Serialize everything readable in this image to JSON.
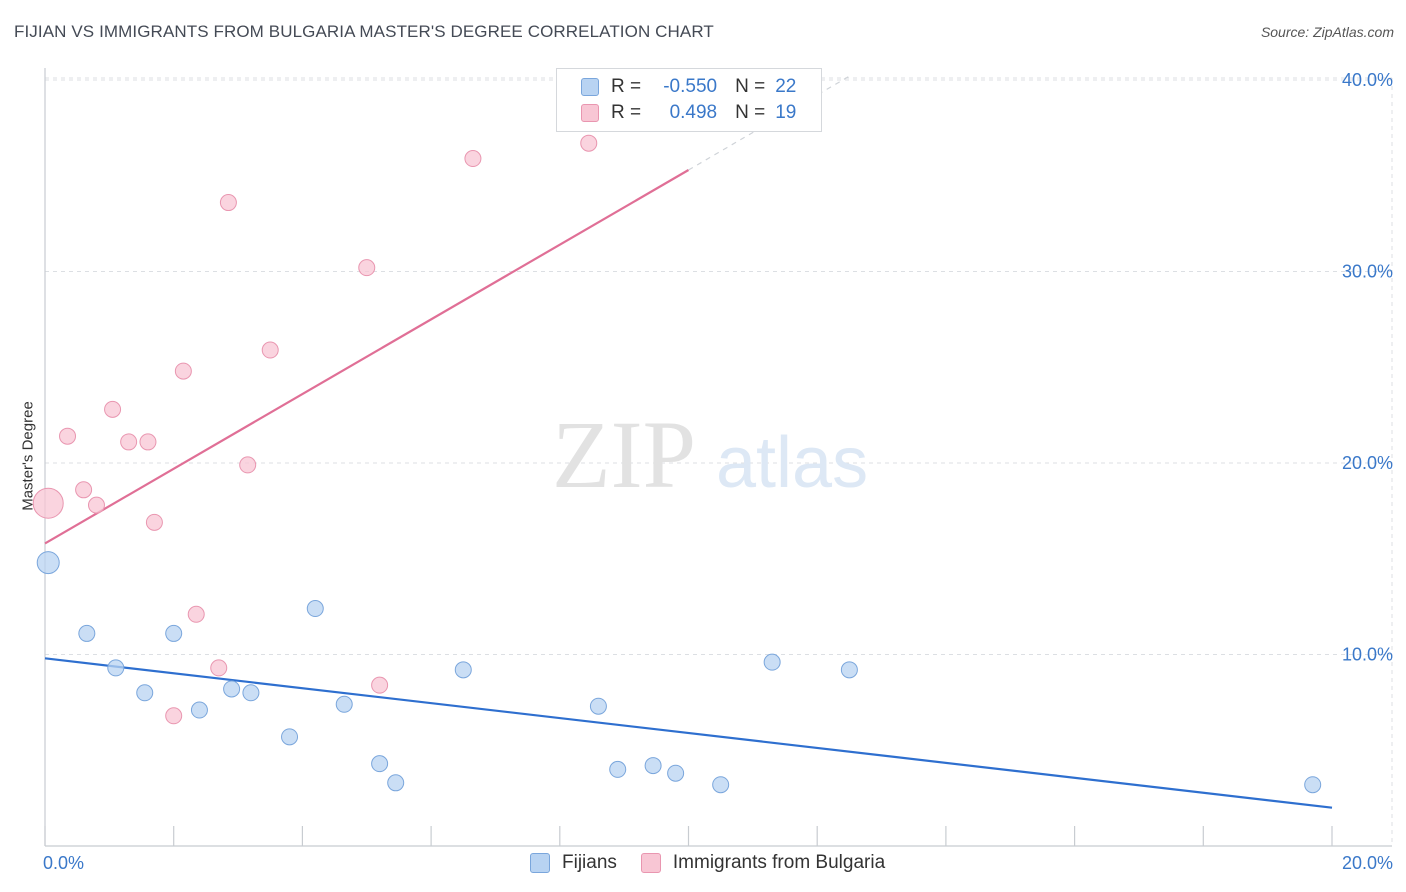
{
  "header": {
    "title": "FIJIAN VS IMMIGRANTS FROM BULGARIA MASTER'S DEGREE CORRELATION CHART",
    "source": "Source: ZipAtlas.com"
  },
  "watermark": {
    "zip": "ZIP",
    "atlas": "atlas"
  },
  "legend": {
    "rows": [
      {
        "r_label": "R =",
        "r_value": "-0.550",
        "n_label": "N =",
        "n_value": "22"
      },
      {
        "r_label": "R =",
        "r_value": "0.498",
        "n_label": "N =",
        "n_value": "19"
      }
    ]
  },
  "colors": {
    "blue_fill": "#b8d3f2",
    "blue_stroke": "#7aa6dc",
    "blue_line": "#2e6fcf",
    "pink_fill": "#f8c6d4",
    "pink_stroke": "#e996b0",
    "pink_line": "#e06f96",
    "tick_text": "#3a78c9"
  },
  "chart_data": {
    "type": "scatter",
    "title": "FIJIAN VS IMMIGRANTS FROM BULGARIA MASTER'S DEGREE CORRELATION CHART",
    "xlabel": "",
    "ylabel": "Master's Degree",
    "xlim": [
      0,
      20
    ],
    "ylim": [
      0,
      42
    ],
    "x_tick_labels": [
      {
        "value": 0,
        "label": "0.0%"
      },
      {
        "value": 20,
        "label": "20.0%"
      }
    ],
    "x_minor_ticks": [
      2,
      4,
      6,
      8,
      10,
      12,
      14,
      16,
      18
    ],
    "y_ticks": [
      {
        "value": 10,
        "label": "10.0%"
      },
      {
        "value": 20,
        "label": "20.0%"
      },
      {
        "value": 30,
        "label": "30.0%"
      },
      {
        "value": 40,
        "label": "40.0%"
      }
    ],
    "grid": true,
    "legend_position": "bottom-center",
    "series": [
      {
        "name": "Fijians",
        "color": "blue",
        "r": -0.55,
        "n": 22,
        "points": [
          {
            "x": 0.05,
            "y": 14.8,
            "size": 11
          },
          {
            "x": 0.65,
            "y": 11.1,
            "size": 8
          },
          {
            "x": 1.1,
            "y": 9.3,
            "size": 8
          },
          {
            "x": 1.55,
            "y": 8.0,
            "size": 8
          },
          {
            "x": 2.0,
            "y": 11.1,
            "size": 8
          },
          {
            "x": 2.4,
            "y": 7.1,
            "size": 8
          },
          {
            "x": 2.9,
            "y": 8.2,
            "size": 8
          },
          {
            "x": 3.2,
            "y": 8.0,
            "size": 8
          },
          {
            "x": 3.8,
            "y": 5.7,
            "size": 8
          },
          {
            "x": 4.2,
            "y": 12.4,
            "size": 8
          },
          {
            "x": 4.65,
            "y": 7.4,
            "size": 8
          },
          {
            "x": 5.2,
            "y": 4.3,
            "size": 8
          },
          {
            "x": 5.45,
            "y": 3.3,
            "size": 8
          },
          {
            "x": 6.5,
            "y": 9.2,
            "size": 8
          },
          {
            "x": 8.6,
            "y": 7.3,
            "size": 8
          },
          {
            "x": 8.9,
            "y": 4.0,
            "size": 8
          },
          {
            "x": 9.45,
            "y": 4.2,
            "size": 8
          },
          {
            "x": 9.8,
            "y": 3.8,
            "size": 8
          },
          {
            "x": 10.5,
            "y": 3.2,
            "size": 8
          },
          {
            "x": 11.3,
            "y": 9.6,
            "size": 8
          },
          {
            "x": 12.5,
            "y": 9.2,
            "size": 8
          },
          {
            "x": 19.7,
            "y": 3.2,
            "size": 8
          }
        ],
        "trend": {
          "x": [
            0,
            20
          ],
          "y": [
            9.8,
            2.0
          ]
        }
      },
      {
        "name": "Immigrants from Bulgaria",
        "color": "pink",
        "r": 0.498,
        "n": 19,
        "points": [
          {
            "x": 0.05,
            "y": 17.9,
            "size": 15
          },
          {
            "x": 0.35,
            "y": 21.4,
            "size": 8
          },
          {
            "x": 0.6,
            "y": 18.6,
            "size": 8
          },
          {
            "x": 0.8,
            "y": 17.8,
            "size": 8
          },
          {
            "x": 1.05,
            "y": 22.8,
            "size": 8
          },
          {
            "x": 1.3,
            "y": 21.1,
            "size": 8
          },
          {
            "x": 1.6,
            "y": 21.1,
            "size": 8
          },
          {
            "x": 1.7,
            "y": 16.9,
            "size": 8
          },
          {
            "x": 2.0,
            "y": 6.8,
            "size": 8
          },
          {
            "x": 2.15,
            "y": 24.8,
            "size": 8
          },
          {
            "x": 2.35,
            "y": 12.1,
            "size": 8
          },
          {
            "x": 2.7,
            "y": 9.3,
            "size": 8
          },
          {
            "x": 2.85,
            "y": 33.6,
            "size": 8
          },
          {
            "x": 3.15,
            "y": 19.9,
            "size": 8
          },
          {
            "x": 3.5,
            "y": 25.9,
            "size": 8
          },
          {
            "x": 5.0,
            "y": 30.2,
            "size": 8
          },
          {
            "x": 5.2,
            "y": 8.4,
            "size": 8
          },
          {
            "x": 6.65,
            "y": 35.9,
            "size": 8
          },
          {
            "x": 8.45,
            "y": 36.7,
            "size": 8
          }
        ],
        "trend": {
          "x": [
            0,
            10.0
          ],
          "y": [
            15.8,
            35.3
          ]
        },
        "trend_extension": {
          "x": [
            10.0,
            12.5
          ],
          "y": [
            35.3,
            40.2
          ]
        }
      }
    ]
  },
  "bottom_legend": {
    "items": [
      {
        "label": "Fijians"
      },
      {
        "label": "Immigrants from Bulgaria"
      }
    ]
  }
}
